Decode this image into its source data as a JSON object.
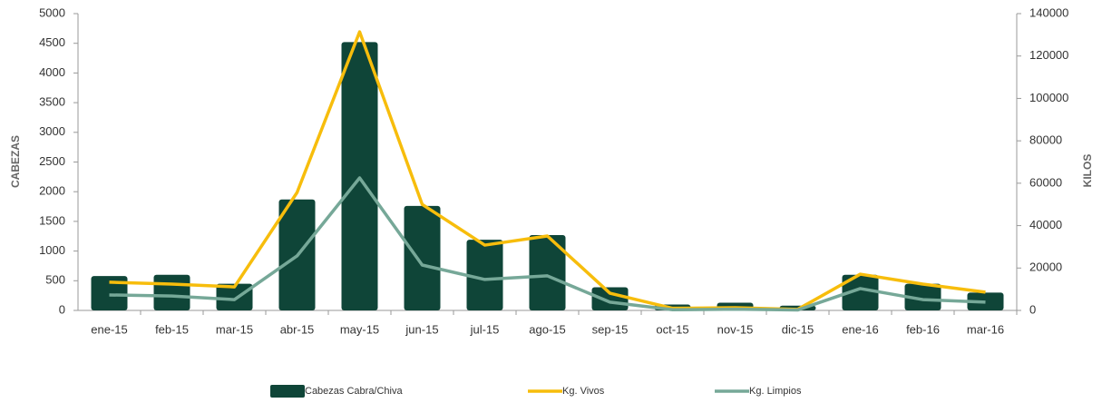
{
  "chart_data": {
    "type": "bar",
    "y_label": "CABEZAS",
    "y2_label": "KILOS",
    "categories": [
      "ene-15",
      "feb-15",
      "mar-15",
      "abr-15",
      "may-15",
      "jun-15",
      "jul-15",
      "ago-15",
      "sep-15",
      "oct-15",
      "nov-15",
      "dic-15",
      "ene-16",
      "feb-16",
      "mar-16"
    ],
    "series": [
      {
        "name": "Cabezas Cabra/Chiva",
        "type": "bar",
        "color": "#0f4538",
        "values": [
          580,
          600,
          450,
          1870,
          4520,
          1760,
          1190,
          1270,
          390,
          100,
          130,
          80,
          600,
          450,
          300
        ]
      },
      {
        "name": "Kg. Vivos",
        "type": "line",
        "axis": "y2",
        "color": "#f7bd0c",
        "values": [
          13300,
          12400,
          11100,
          55600,
          131400,
          50000,
          30800,
          35100,
          8100,
          1000,
          1300,
          500,
          17100,
          12400,
          8600
        ]
      },
      {
        "name": "Kg. Limpios",
        "type": "line",
        "axis": "y2",
        "color": "#76a898",
        "values": [
          7300,
          6800,
          5100,
          25700,
          62500,
          21400,
          14600,
          16300,
          3900,
          300,
          600,
          200,
          10300,
          5100,
          3900
        ]
      }
    ],
    "ylim": [
      0,
      5000
    ],
    "yticks": [
      0,
      500,
      1000,
      1500,
      2000,
      2500,
      3000,
      3500,
      4000,
      4500,
      5000
    ],
    "y2lim": [
      0,
      140000
    ],
    "y2ticks": [
      0,
      20000,
      40000,
      60000,
      80000,
      100000,
      120000,
      140000
    ]
  }
}
